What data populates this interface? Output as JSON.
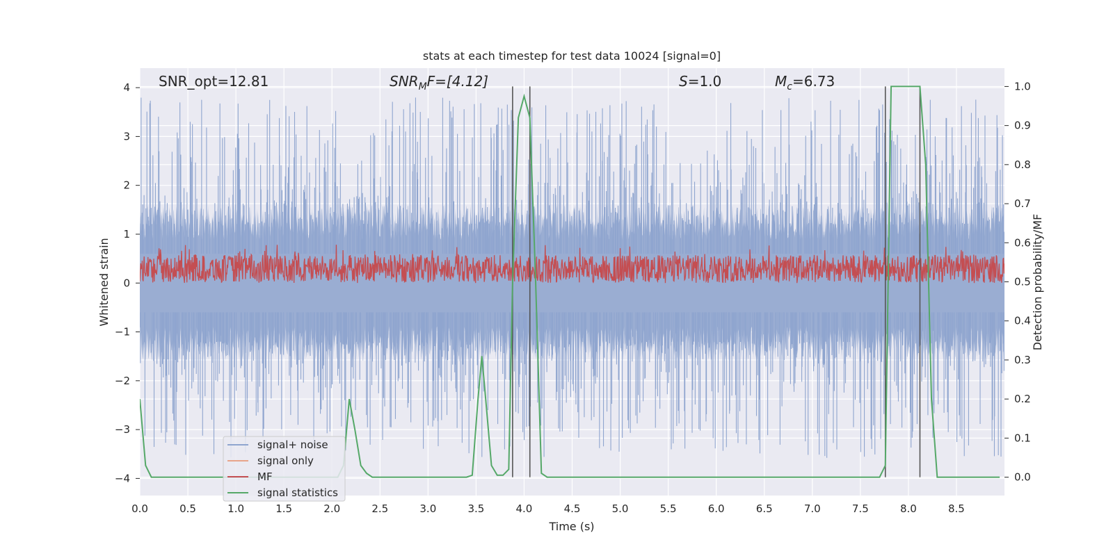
{
  "chart_data": {
    "type": "line",
    "title": "stats at each timestep for test data 10024 [signal=0]",
    "xlabel": "Time (s)",
    "ylabel": "Whitened strain",
    "y2label": "Detection probability/MF",
    "xlim": [
      0.0,
      9.0
    ],
    "ylim": [
      -4.35,
      4.4
    ],
    "y2lim": [
      -0.047,
      1.047
    ],
    "xticks": [
      "0.0",
      "0.5",
      "1.0",
      "1.5",
      "2.0",
      "2.5",
      "3.0",
      "3.5",
      "4.0",
      "4.5",
      "5.0",
      "5.5",
      "6.0",
      "6.5",
      "7.0",
      "7.5",
      "8.0",
      "8.5"
    ],
    "yticks": [
      "−4",
      "−3",
      "−2",
      "−1",
      "0",
      "1",
      "2",
      "3",
      "4"
    ],
    "y2ticks": [
      "0.0",
      "0.1",
      "0.2",
      "0.3",
      "0.4",
      "0.5",
      "0.6",
      "0.7",
      "0.8",
      "0.9",
      "1.0"
    ],
    "grid": true,
    "legend_position": "lower-left",
    "annotations": {
      "snr_opt": "SNR_opt=12.81",
      "snr_mf_main": "SNR",
      "snr_mf_sub": "M",
      "snr_mf_rest": "F=[4.12]",
      "s_main": "S",
      "s_rest": "=1.0",
      "mc_main": "M",
      "mc_sub": "c",
      "mc_rest": "=6.73"
    },
    "vertical_lines_x": [
      3.88,
      4.06,
      7.76,
      8.12
    ],
    "noise": {
      "name": "signal+ noise",
      "color": "#8fa5cf",
      "x_start": 0.0,
      "x_end": 9.0,
      "base_amplitude": 1.6,
      "spike_max": 3.8,
      "spike_min": -3.6
    },
    "signal_only": {
      "name": "signal only",
      "color": "#e8a48a",
      "values": []
    },
    "mf": {
      "name": "MF",
      "color": "#c44e52",
      "mean": 0.3,
      "min": 0.0,
      "max": 1.0
    },
    "signal_statistics": {
      "name": "signal statistics",
      "color": "#55a868",
      "x": [
        0.0,
        0.06,
        0.12,
        0.18,
        0.5,
        1.0,
        1.5,
        2.0,
        2.06,
        2.12,
        2.18,
        2.24,
        2.3,
        2.36,
        2.42,
        2.5,
        3.0,
        3.4,
        3.46,
        3.52,
        3.56,
        3.6,
        3.66,
        3.72,
        3.78,
        3.84,
        3.88,
        3.94,
        4.0,
        4.06,
        4.12,
        4.18,
        4.24,
        4.5,
        5.0,
        6.0,
        7.0,
        7.7,
        7.76,
        7.82,
        7.9,
        8.06,
        8.12,
        8.18,
        8.24,
        8.3,
        8.5,
        8.95
      ],
      "y": [
        0.2,
        0.03,
        0.0,
        0.0,
        0.0,
        0.0,
        0.0,
        0.0,
        0.0,
        0.03,
        0.2,
        0.12,
        0.03,
        0.01,
        0.0,
        0.0,
        0.0,
        0.0,
        0.005,
        0.2,
        0.31,
        0.2,
        0.03,
        0.005,
        0.005,
        0.02,
        0.5,
        0.92,
        0.975,
        0.92,
        0.5,
        0.01,
        0.0,
        0.0,
        0.0,
        0.0,
        0.0,
        0.0,
        0.03,
        1.0,
        1.0,
        1.0,
        1.0,
        0.8,
        0.2,
        0.0,
        0.0,
        0.0
      ]
    }
  }
}
